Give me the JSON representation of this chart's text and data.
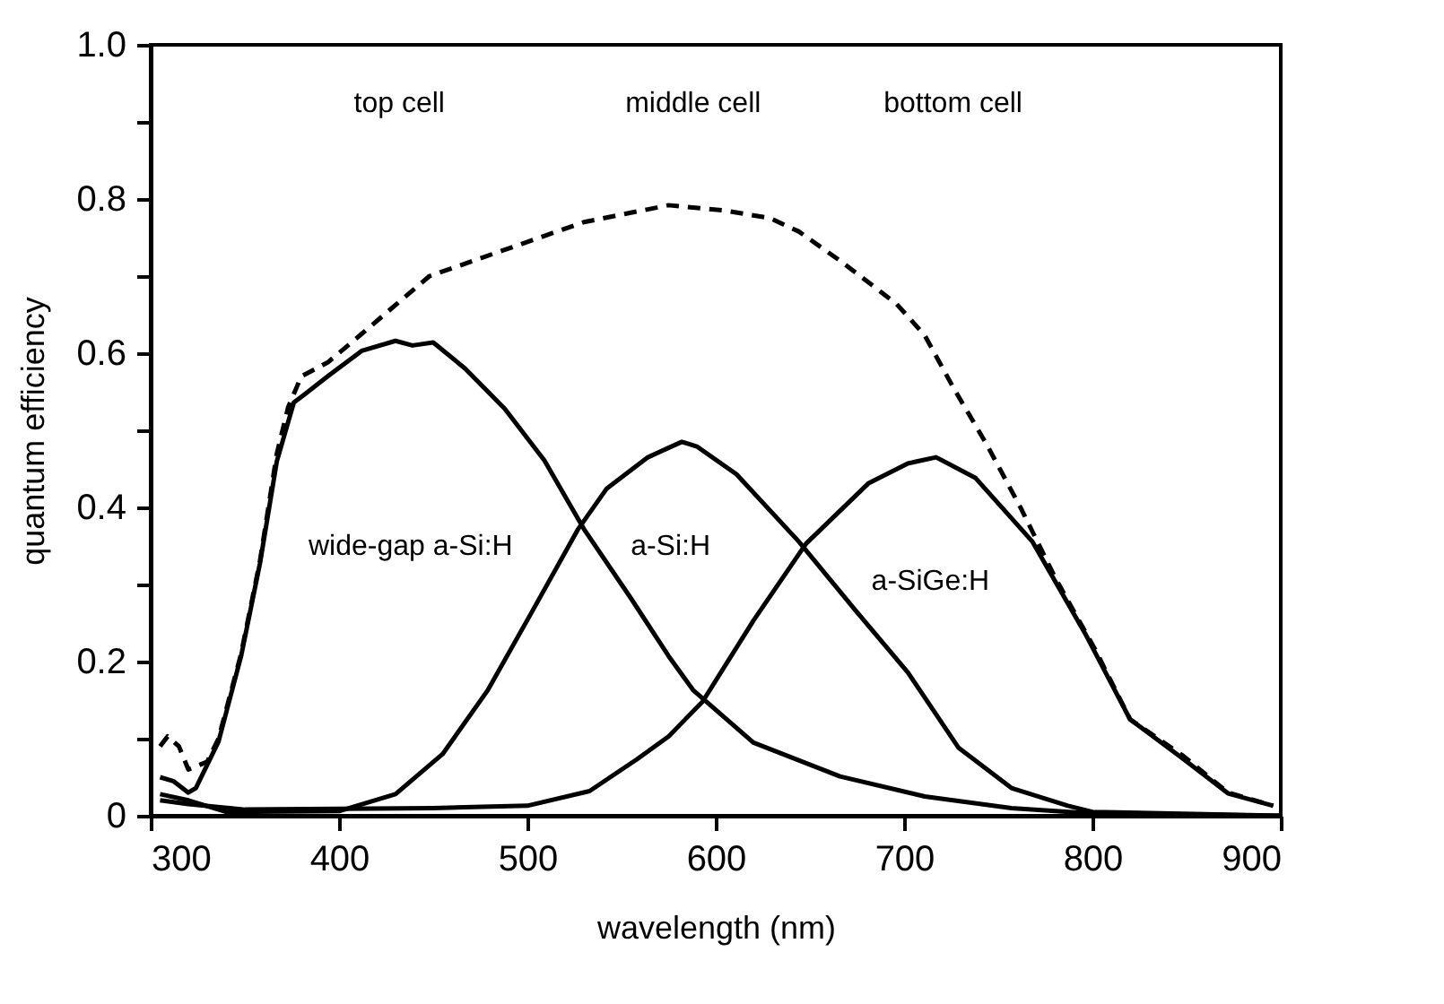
{
  "chart_data": {
    "type": "line",
    "xlabel": "wavelength (nm)",
    "ylabel": "quantum efficiency",
    "xlim": [
      300,
      900
    ],
    "ylim": [
      0,
      1.0
    ],
    "xticks": [
      300,
      400,
      500,
      600,
      700,
      800,
      900
    ],
    "yticks": [
      0,
      {
        "value": 0.1,
        "label": null
      },
      0.2,
      {
        "value": 0.3,
        "label": null
      },
      0.4,
      {
        "value": 0.5,
        "label": null
      },
      0.6,
      {
        "value": 0.7,
        "label": null
      },
      0.8,
      {
        "value": 0.9,
        "label": null
      },
      {
        "value": 1.0,
        "label": "1.0"
      }
    ],
    "grid": false,
    "marker": "none",
    "series": [
      {
        "color": "#000000",
        "line_style": "solid",
        "x": [
          305,
          312,
          320,
          324,
          336,
          348,
          358,
          367,
          376,
          382,
          394,
          412,
          430,
          439,
          450,
          467,
          488,
          509,
          530,
          555,
          575,
          588,
          620,
          666,
          711,
          757,
          800,
          900
        ],
        "values": [
          0.05,
          0.045,
          0.03,
          0.036,
          0.096,
          0.207,
          0.327,
          0.46,
          0.536,
          0.547,
          0.57,
          0.603,
          0.616,
          0.61,
          0.614,
          0.58,
          0.528,
          0.461,
          0.372,
          0.282,
          0.207,
          0.163,
          0.095,
          0.051,
          0.025,
          0.01,
          0.003,
          0.0
        ]
      },
      {
        "color": "#000000",
        "line_style": "solid",
        "x": [
          305,
          320,
          340,
          400,
          430,
          455,
          479,
          503,
          527,
          542,
          564,
          582,
          590,
          611,
          644,
          674,
          702,
          729,
          757,
          787,
          800,
          900
        ],
        "values": [
          0.028,
          0.02,
          0.005,
          0.006,
          0.028,
          0.08,
          0.163,
          0.267,
          0.372,
          0.424,
          0.465,
          0.485,
          0.479,
          0.443,
          0.356,
          0.267,
          0.186,
          0.088,
          0.036,
          0.013,
          0.005,
          0.0
        ]
      },
      {
        "color": "#000000",
        "line_style": "solid",
        "x": [
          305,
          320,
          350,
          450,
          500,
          533,
          558,
          575,
          593,
          620,
          648,
          681,
          702,
          717,
          738,
          768,
          796,
          820,
          848,
          872,
          896
        ],
        "values": [
          0.02,
          0.015,
          0.008,
          0.01,
          0.013,
          0.032,
          0.073,
          0.103,
          0.148,
          0.253,
          0.353,
          0.431,
          0.457,
          0.465,
          0.438,
          0.356,
          0.237,
          0.125,
          0.074,
          0.029,
          0.013
        ]
      },
      {
        "color": "#000000",
        "line_style": "dashed",
        "x": [
          305,
          309,
          315,
          320,
          330,
          336,
          348,
          358,
          367,
          373,
          380,
          394,
          412,
          448,
          482,
          530,
          575,
          605,
          629,
          644,
          666,
          696,
          711,
          726,
          744,
          762,
          780,
          802,
          820,
          848,
          872,
          896
        ],
        "values": [
          0.09,
          0.103,
          0.09,
          0.06,
          0.07,
          0.1,
          0.21,
          0.33,
          0.47,
          0.53,
          0.57,
          0.588,
          0.625,
          0.7,
          0.729,
          0.77,
          0.792,
          0.785,
          0.775,
          0.758,
          0.72,
          0.664,
          0.623,
          0.556,
          0.481,
          0.399,
          0.31,
          0.213,
          0.125,
          0.078,
          0.03,
          0.013
        ]
      }
    ],
    "annotations": [
      "top cell",
      "middle cell",
      "bottom cell",
      "wide-gap a-Si:H",
      "a-Si:H",
      "a-SiGe:H"
    ]
  }
}
